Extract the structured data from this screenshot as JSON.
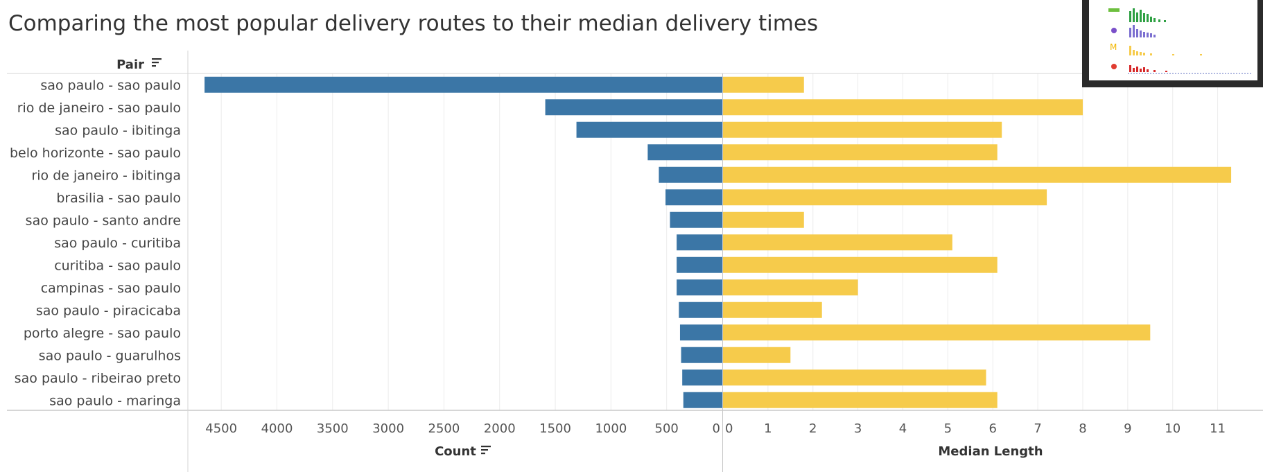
{
  "title": "Comparing the most popular delivery routes to their median delivery times",
  "chart_data": {
    "type": "bar",
    "categories": [
      "sao paulo - sao paulo",
      "rio de janeiro - sao paulo",
      "sao paulo - ibitinga",
      "belo horizonte - sao paulo",
      "rio de janeiro - ibitinga",
      "brasilia - sao paulo",
      "sao paulo - santo andre",
      "sao paulo - curitiba",
      "curitiba - sao paulo",
      "campinas - sao paulo",
      "sao paulo - piracicaba",
      "porto alegre - sao paulo",
      "sao paulo - guarulhos",
      "sao paulo - ribeirao preto",
      "sao paulo - maringa"
    ],
    "row_header": "Pair",
    "series": [
      {
        "name": "Count",
        "color": "#3b76a6",
        "xlim": [
          4800,
          0
        ],
        "ticks": [
          4500,
          4000,
          3500,
          3000,
          2500,
          2000,
          1500,
          1000,
          500,
          0
        ],
        "values": [
          4650,
          1590,
          1310,
          670,
          570,
          510,
          470,
          410,
          410,
          410,
          390,
          380,
          370,
          360,
          350
        ]
      },
      {
        "name": "Median Length",
        "color": "#f6cb4b",
        "xlim": [
          0,
          11.9
        ],
        "ticks": [
          0,
          1,
          2,
          3,
          4,
          5,
          6,
          7,
          8,
          9,
          10,
          11
        ],
        "values": [
          1.8,
          8.0,
          6.2,
          6.1,
          11.3,
          7.2,
          1.8,
          5.1,
          6.1,
          3.0,
          2.2,
          9.5,
          1.5,
          5.85,
          6.1
        ]
      }
    ],
    "grid": true,
    "legend": "none"
  },
  "icons": {
    "sort": "sort-icon"
  }
}
